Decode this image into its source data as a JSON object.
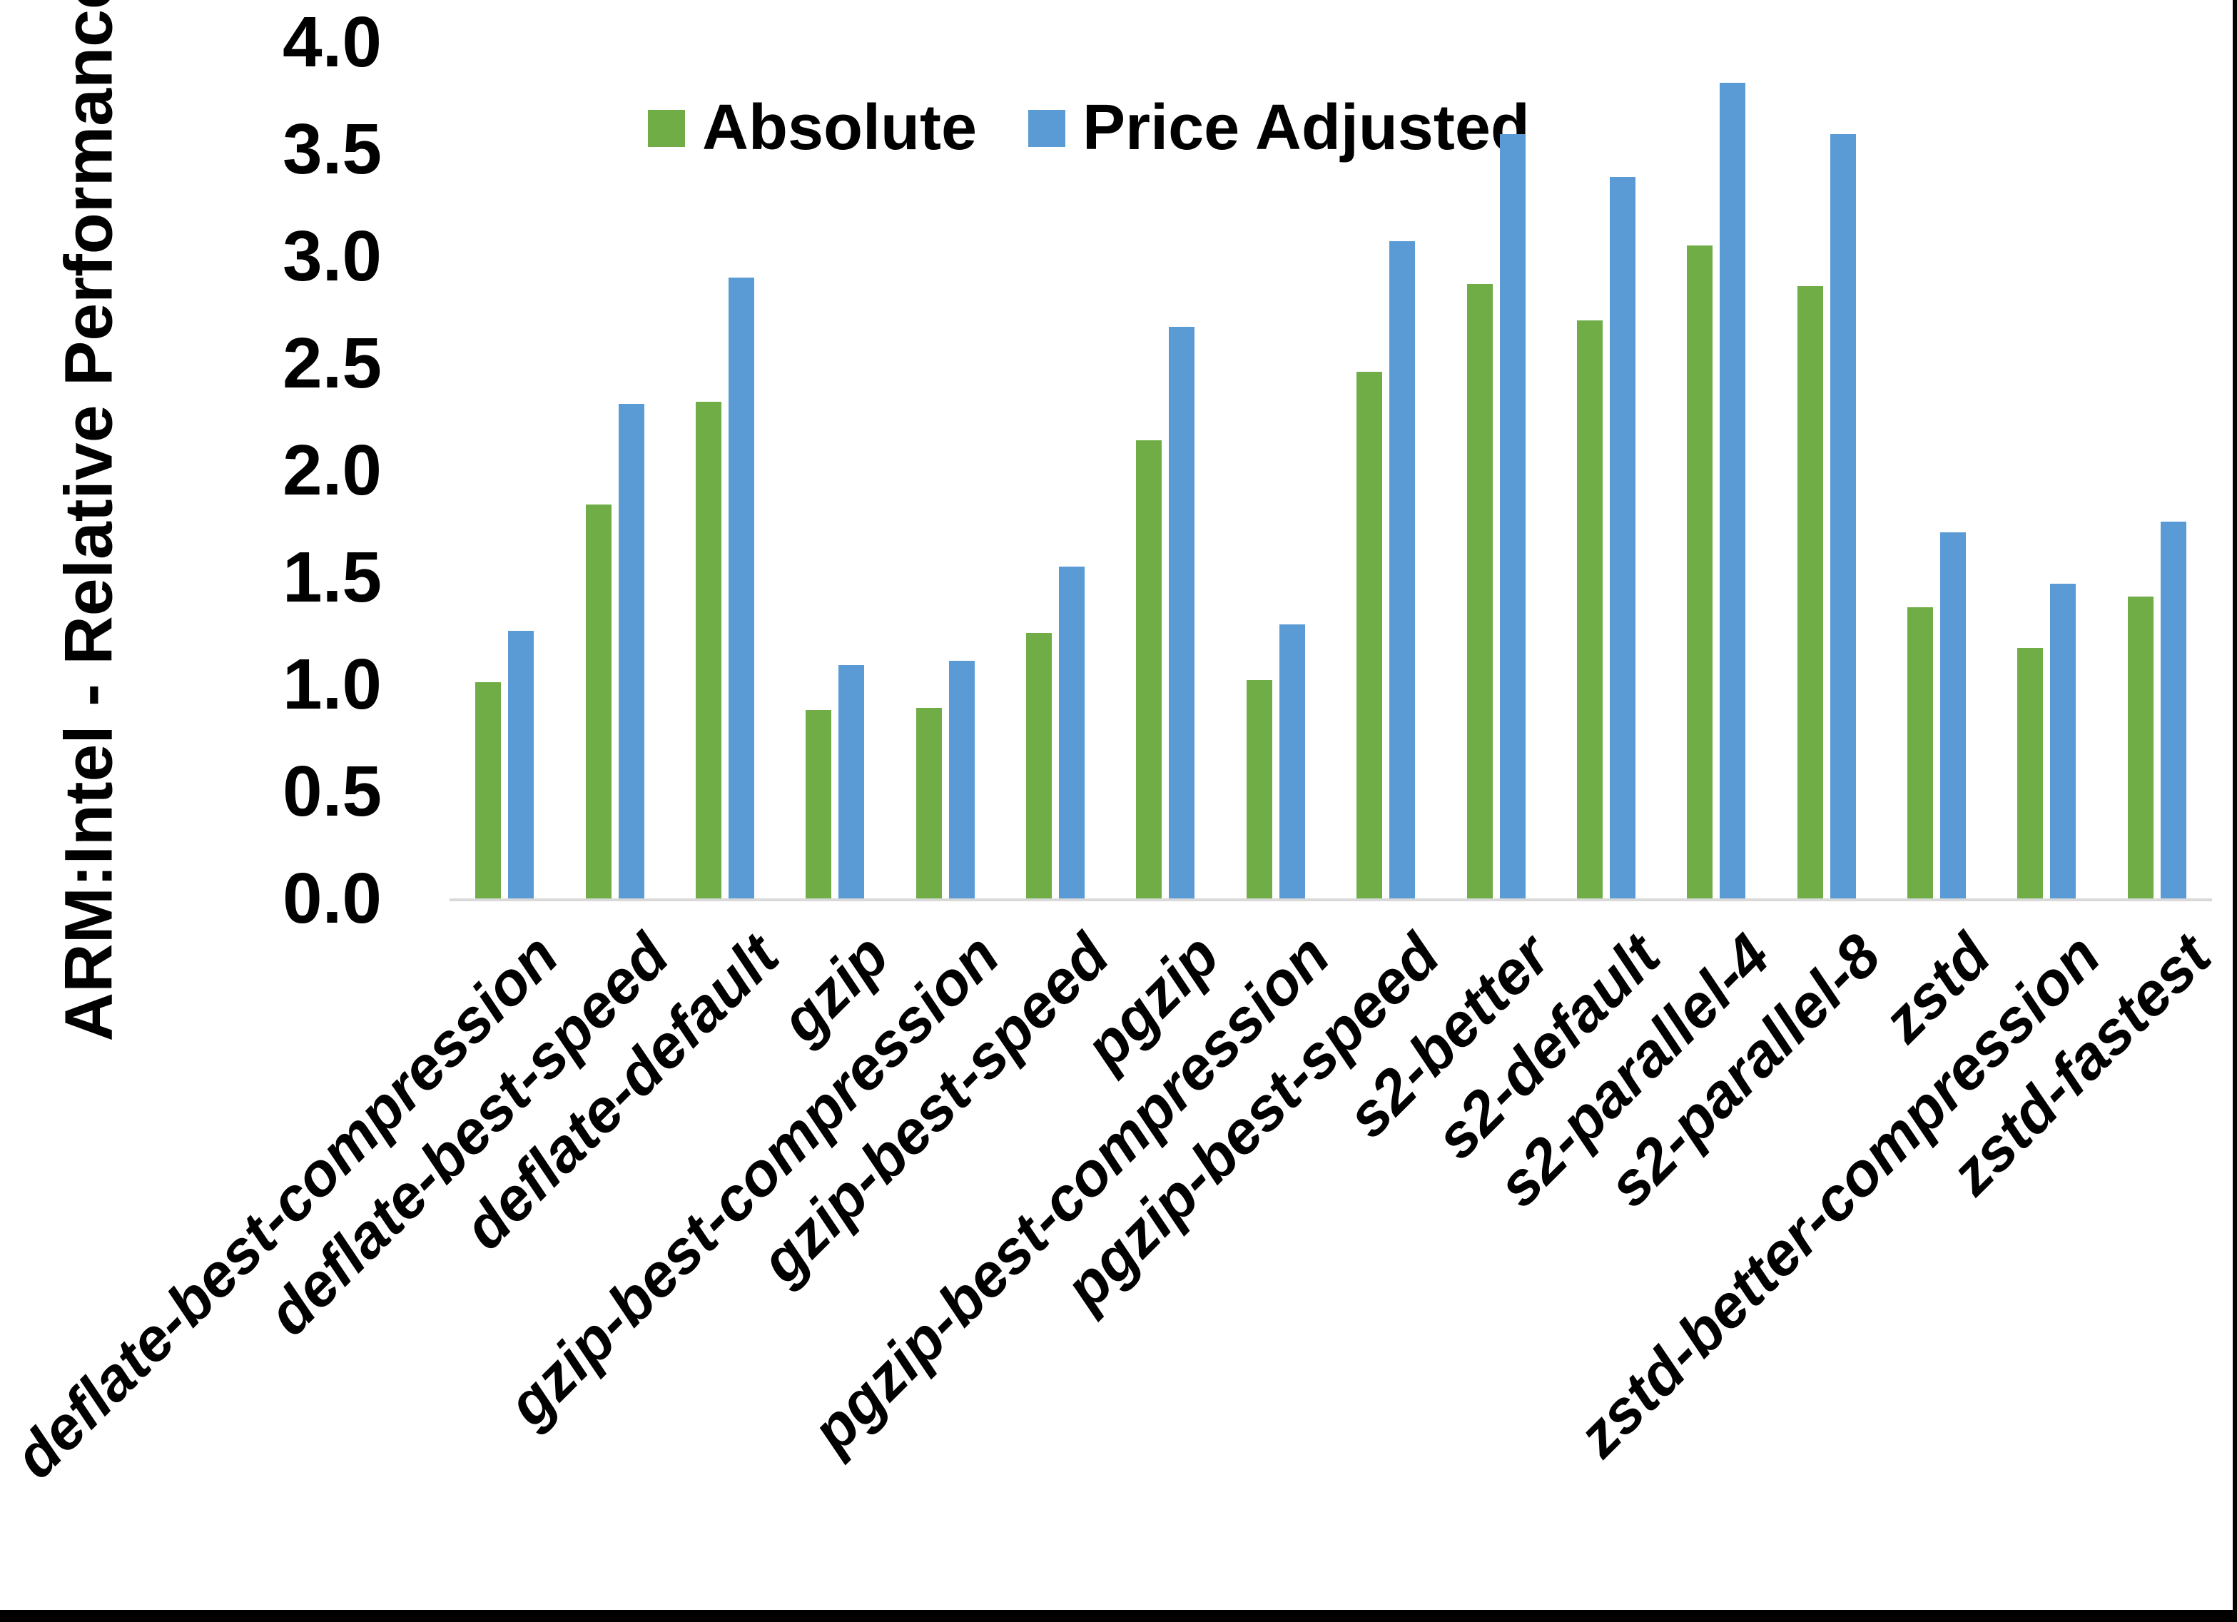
{
  "chart_data": {
    "type": "bar",
    "title": "",
    "xlabel": "",
    "ylabel": "ARM:Intel - Relative Performance",
    "ylim": [
      0.0,
      4.0
    ],
    "ytick_step": 0.5,
    "ytick_labels": [
      "0.0",
      "0.5",
      "1.0",
      "1.5",
      "2.0",
      "2.5",
      "3.0",
      "3.5",
      "4.0"
    ],
    "grid": false,
    "legend_position": "top-center",
    "background_color": "#ffffff",
    "axis_line_color": "#D9D9D9",
    "text_color": "#000000",
    "categories": [
      "deflate-best-compression",
      "deflate-best-speed",
      "deflate-default",
      "gzip",
      "gzip-best-compression",
      "gzip-best-speed",
      "pgzip",
      "pgzip-best-compression",
      "pgzip-best-speed",
      "s2-better",
      "s2-default",
      "s2-parallel-4",
      "s2-parallel-8",
      "zstd",
      "zstd-better-compression",
      "zstd-fastest"
    ],
    "series": [
      {
        "name": "Absolute",
        "color": "#70AD47",
        "values": [
          1.01,
          1.84,
          2.32,
          0.88,
          0.89,
          1.24,
          2.14,
          1.02,
          2.46,
          2.87,
          2.7,
          3.05,
          2.86,
          1.36,
          1.17,
          1.41
        ]
      },
      {
        "name": "Price Adjusted",
        "color": "#5B9BD5",
        "values": [
          1.25,
          2.31,
          2.9,
          1.09,
          1.11,
          1.55,
          2.67,
          1.28,
          3.07,
          3.57,
          3.37,
          3.81,
          3.57,
          1.71,
          1.47,
          1.76
        ]
      }
    ]
  },
  "frame": {
    "right_border_color": "#000000",
    "bottom_border_color": "#000000"
  }
}
